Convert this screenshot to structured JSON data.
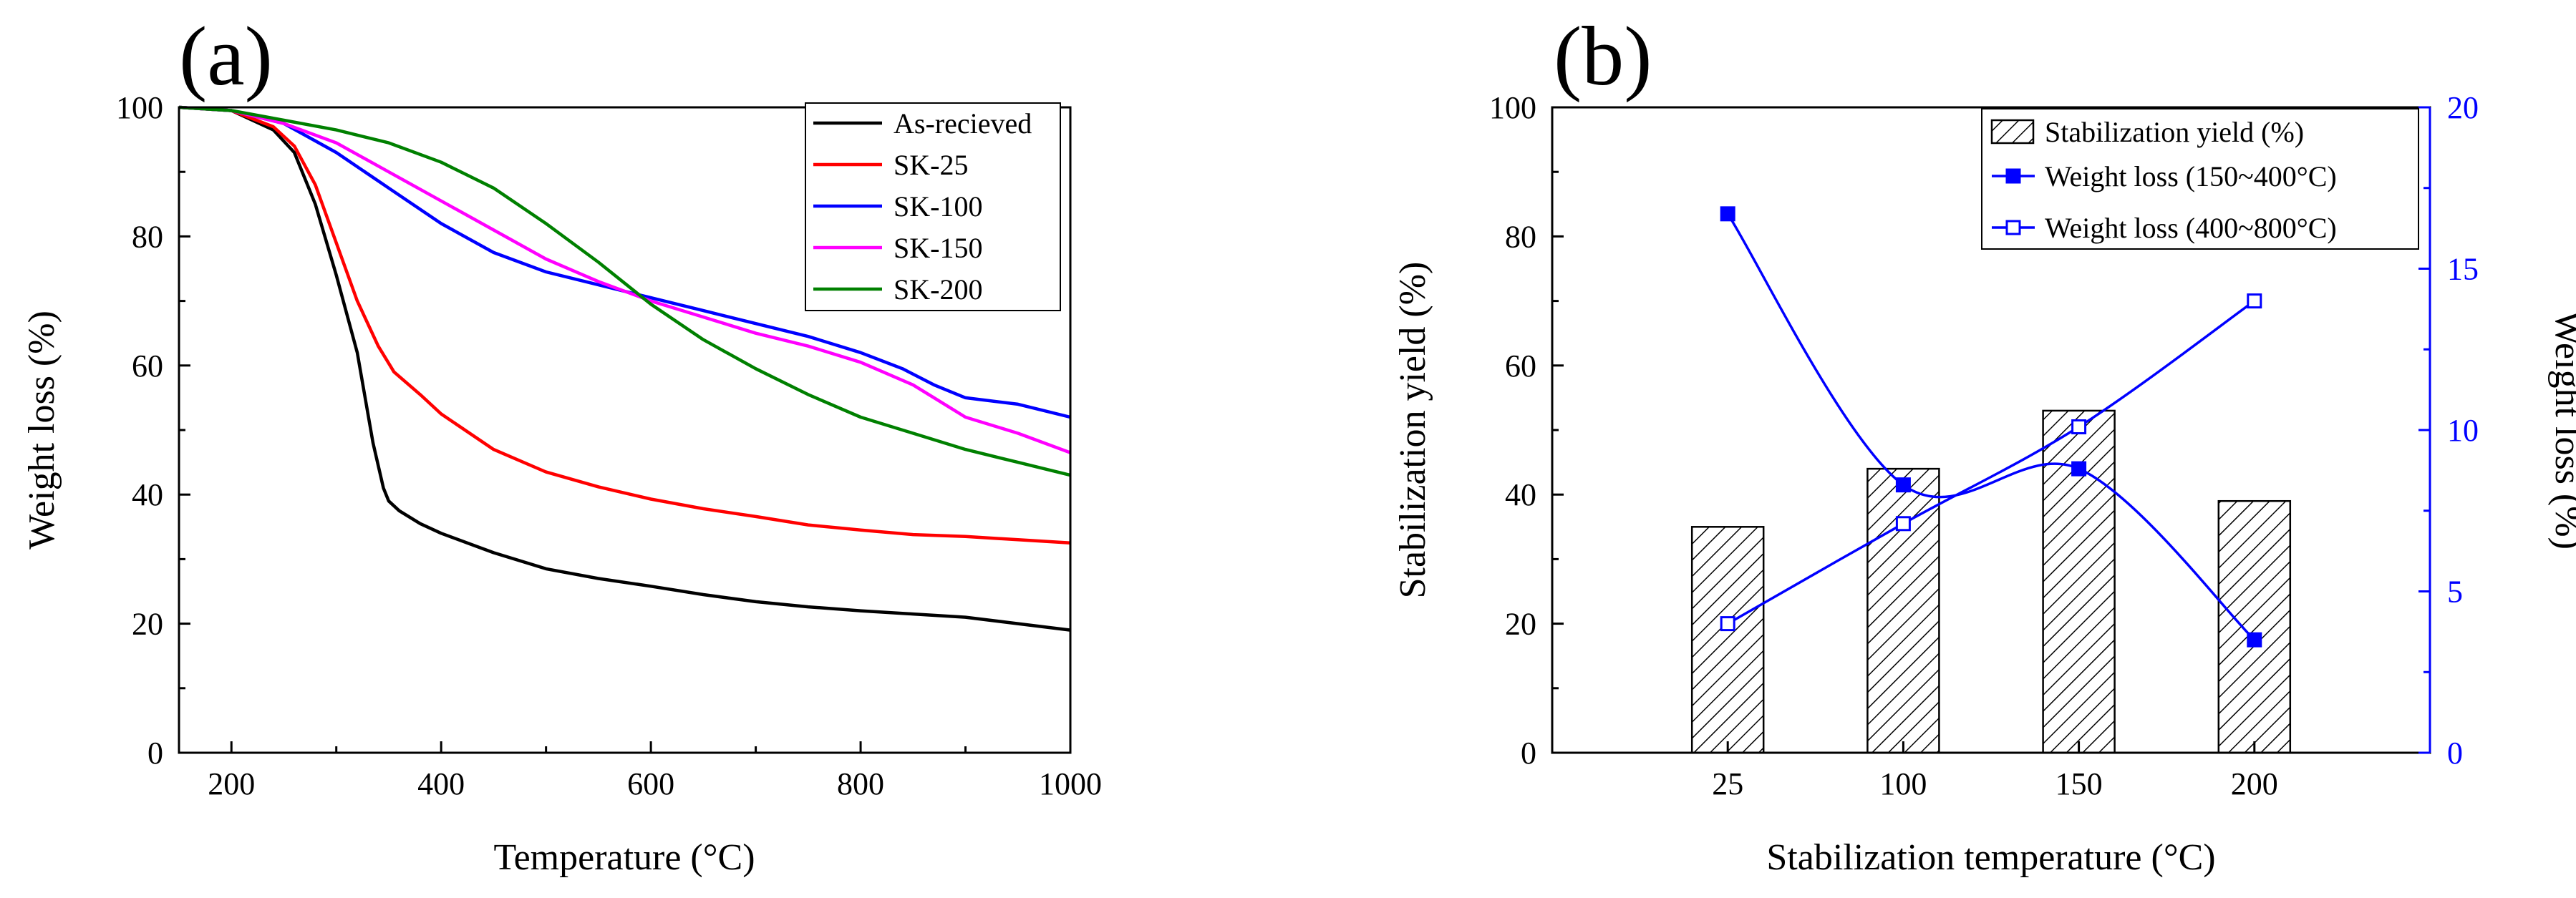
{
  "chart_data": [
    {
      "type": "line",
      "panel_label": "(a)",
      "xlabel": "Temperature (°C)",
      "ylabel": "Weight loss (%)",
      "xlim": [
        150,
        1000
      ],
      "ylim": [
        0,
        100
      ],
      "xticks": [
        200,
        400,
        600,
        800,
        1000
      ],
      "yticks": [
        0,
        20,
        40,
        60,
        80,
        100
      ],
      "grid": false,
      "legend_position": "top-right",
      "series": [
        {
          "name": "As-recieved",
          "color": "#000000",
          "x": [
            150,
            200,
            240,
            260,
            280,
            300,
            320,
            335,
            345,
            350,
            360,
            380,
            400,
            450,
            500,
            550,
            600,
            650,
            700,
            750,
            800,
            850,
            900,
            950,
            1000
          ],
          "y": [
            100,
            99.5,
            96.5,
            93,
            85,
            74,
            62,
            48,
            41,
            39,
            37.5,
            35.5,
            34,
            31,
            28.5,
            27,
            25.8,
            24.5,
            23.4,
            22.6,
            22,
            21.5,
            21,
            20,
            19
          ]
        },
        {
          "name": "SK-25",
          "color": "#ff0000",
          "x": [
            150,
            200,
            240,
            260,
            280,
            300,
            320,
            340,
            355,
            380,
            400,
            450,
            500,
            550,
            600,
            650,
            700,
            750,
            800,
            850,
            900,
            950,
            1000
          ],
          "y": [
            100,
            99.5,
            97,
            94,
            88,
            79,
            70,
            63,
            59,
            55.5,
            52.5,
            47,
            43.5,
            41.2,
            39.3,
            37.8,
            36.6,
            35.3,
            34.5,
            33.8,
            33.5,
            33,
            32.5
          ]
        },
        {
          "name": "SK-100",
          "color": "#0000ff",
          "x": [
            150,
            200,
            250,
            300,
            350,
            400,
            450,
            500,
            550,
            600,
            650,
            700,
            750,
            800,
            840,
            870,
            900,
            950,
            1000
          ],
          "y": [
            100,
            99.5,
            97.5,
            93,
            87.5,
            82,
            77.5,
            74.5,
            72.5,
            70.5,
            68.5,
            66.5,
            64.5,
            62,
            59.5,
            57,
            55,
            54,
            52
          ]
        },
        {
          "name": "SK-150",
          "color": "#ff00ff",
          "x": [
            150,
            200,
            250,
            300,
            350,
            400,
            450,
            500,
            550,
            600,
            650,
            700,
            750,
            800,
            850,
            870,
            900,
            950,
            1000
          ],
          "y": [
            100,
            99.5,
            97.5,
            94.5,
            90,
            85.5,
            81,
            76.5,
            73,
            70,
            67.5,
            65,
            63,
            60.5,
            57,
            55,
            52,
            49.5,
            46.5
          ]
        },
        {
          "name": "SK-200",
          "color": "#008000",
          "x": [
            150,
            200,
            250,
            300,
            350,
            400,
            450,
            500,
            550,
            600,
            650,
            700,
            750,
            800,
            850,
            900,
            950,
            1000
          ],
          "y": [
            100,
            99.5,
            98,
            96.5,
            94.5,
            91.5,
            87.5,
            82,
            76,
            69.5,
            64,
            59.5,
            55.5,
            52,
            49.5,
            47,
            45,
            43
          ]
        }
      ]
    },
    {
      "type": "bar",
      "panel_label": "(b)",
      "xlabel": "Stabilization temperature (°C)",
      "ylabel": "Stabilization yield (%)",
      "y2label": "Weight loss (%)",
      "categories": [
        "25",
        "100",
        "150",
        "200"
      ],
      "ylim": [
        0,
        100
      ],
      "yticks": [
        0,
        20,
        40,
        60,
        80,
        100
      ],
      "y2lim": [
        0,
        20
      ],
      "y2ticks": [
        0,
        5,
        10,
        15,
        20
      ],
      "grid": false,
      "legend_position": "top-right",
      "series": [
        {
          "name": "Stabilization yield (%)",
          "kind": "bar",
          "axis": "left",
          "color": "#000000",
          "values": [
            35,
            44,
            53,
            39
          ]
        },
        {
          "name": "Weight loss (150~400°C)",
          "kind": "line",
          "axis": "right",
          "marker": "filled-square",
          "color": "#0000ff",
          "values": [
            16.7,
            8.3,
            8.8,
            3.5
          ]
        },
        {
          "name": "Weight loss (400~800°C)",
          "kind": "line",
          "axis": "right",
          "marker": "open-square",
          "color": "#0000ff",
          "values": [
            4,
            7.1,
            10.1,
            14
          ]
        }
      ]
    }
  ]
}
